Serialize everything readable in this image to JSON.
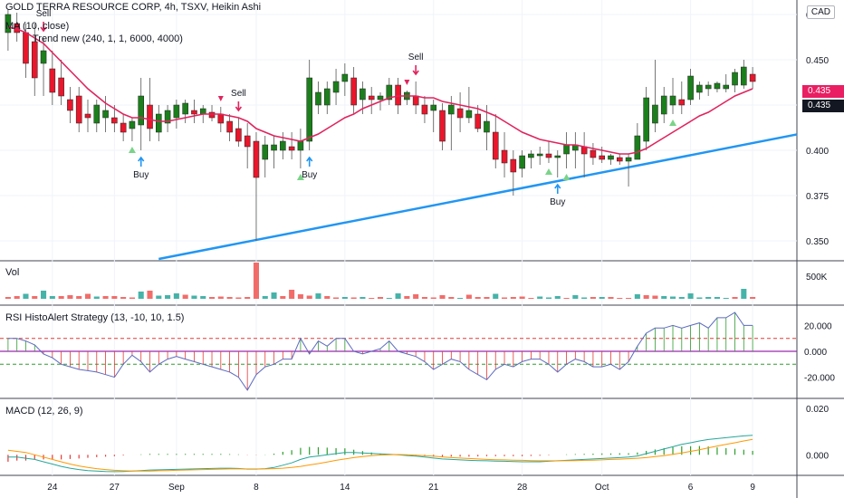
{
  "header": {
    "title": "GOLD TERRA RESOURCE CORP, 4h, TSXV, Heikin Ashi",
    "ma_label": "MA (10, close)",
    "trend_label": "Trend new (240, 1, 1, 6000, 4000)",
    "currency": "CAD"
  },
  "price_badges": {
    "last": "0.435",
    "ma": "0.435"
  },
  "panes": {
    "vol": "Vol",
    "rsi": "RSI HistoAlert Strategy (13, -10, 10, 1.5)",
    "macd": "MACD (12, 26, 9)"
  },
  "x_axis": [
    "24",
    "27",
    "Sep",
    "8",
    "14",
    "21",
    "28",
    "Oct",
    "6",
    "9"
  ],
  "colors": {
    "up": "#1b7f1b",
    "down": "#e8172c",
    "ma": "#e0245e",
    "trend": "#2196f3",
    "vol_up": "#26a69a",
    "vol_down": "#ef5350"
  },
  "chart_data": [
    {
      "type": "candlestick",
      "name": "price",
      "y_ticks": [
        "0.475",
        "0.450",
        "0.425",
        "0.400",
        "0.375",
        "0.350"
      ],
      "ylim": [
        0.339,
        0.483
      ],
      "candles": [
        {
          "o": 0.465,
          "h": 0.478,
          "l": 0.455,
          "c": 0.475
        },
        {
          "o": 0.47,
          "h": 0.476,
          "l": 0.46,
          "c": 0.465
        },
        {
          "o": 0.465,
          "h": 0.47,
          "l": 0.44,
          "c": 0.448
        },
        {
          "o": 0.46,
          "h": 0.47,
          "l": 0.43,
          "c": 0.44
        },
        {
          "o": 0.448,
          "h": 0.462,
          "l": 0.43,
          "c": 0.455
        },
        {
          "o": 0.445,
          "h": 0.455,
          "l": 0.425,
          "c": 0.432
        },
        {
          "o": 0.44,
          "h": 0.45,
          "l": 0.425,
          "c": 0.43
        },
        {
          "o": 0.428,
          "h": 0.435,
          "l": 0.415,
          "c": 0.422
        },
        {
          "o": 0.43,
          "h": 0.435,
          "l": 0.41,
          "c": 0.415
        },
        {
          "o": 0.42,
          "h": 0.428,
          "l": 0.41,
          "c": 0.418
        },
        {
          "o": 0.415,
          "h": 0.428,
          "l": 0.41,
          "c": 0.425
        },
        {
          "o": 0.418,
          "h": 0.43,
          "l": 0.41,
          "c": 0.422
        },
        {
          "o": 0.418,
          "h": 0.425,
          "l": 0.41,
          "c": 0.415
        },
        {
          "o": 0.415,
          "h": 0.42,
          "l": 0.405,
          "c": 0.41
        },
        {
          "o": 0.412,
          "h": 0.418,
          "l": 0.405,
          "c": 0.416
        },
        {
          "o": 0.414,
          "h": 0.44,
          "l": 0.4,
          "c": 0.43
        },
        {
          "o": 0.425,
          "h": 0.44,
          "l": 0.405,
          "c": 0.412
        },
        {
          "o": 0.41,
          "h": 0.425,
          "l": 0.405,
          "c": 0.42
        },
        {
          "o": 0.415,
          "h": 0.425,
          "l": 0.41,
          "c": 0.422
        },
        {
          "o": 0.418,
          "h": 0.428,
          "l": 0.412,
          "c": 0.425
        },
        {
          "o": 0.42,
          "h": 0.428,
          "l": 0.415,
          "c": 0.426
        },
        {
          "o": 0.422,
          "h": 0.428,
          "l": 0.415,
          "c": 0.42
        },
        {
          "o": 0.42,
          "h": 0.425,
          "l": 0.415,
          "c": 0.423
        },
        {
          "o": 0.421,
          "h": 0.425,
          "l": 0.416,
          "c": 0.418
        },
        {
          "o": 0.42,
          "h": 0.424,
          "l": 0.41,
          "c": 0.415
        },
        {
          "o": 0.416,
          "h": 0.42,
          "l": 0.405,
          "c": 0.41
        },
        {
          "o": 0.412,
          "h": 0.418,
          "l": 0.402,
          "c": 0.405
        },
        {
          "o": 0.408,
          "h": 0.415,
          "l": 0.39,
          "c": 0.402
        },
        {
          "o": 0.405,
          "h": 0.41,
          "l": 0.35,
          "c": 0.385
        },
        {
          "o": 0.395,
          "h": 0.408,
          "l": 0.385,
          "c": 0.403
        },
        {
          "o": 0.4,
          "h": 0.408,
          "l": 0.39,
          "c": 0.403
        },
        {
          "o": 0.4,
          "h": 0.41,
          "l": 0.395,
          "c": 0.405
        },
        {
          "o": 0.402,
          "h": 0.41,
          "l": 0.395,
          "c": 0.4
        },
        {
          "o": 0.4,
          "h": 0.412,
          "l": 0.39,
          "c": 0.405
        },
        {
          "o": 0.405,
          "h": 0.45,
          "l": 0.4,
          "c": 0.44
        },
        {
          "o": 0.425,
          "h": 0.438,
          "l": 0.42,
          "c": 0.432
        },
        {
          "o": 0.425,
          "h": 0.438,
          "l": 0.42,
          "c": 0.434
        },
        {
          "o": 0.432,
          "h": 0.445,
          "l": 0.425,
          "c": 0.438
        },
        {
          "o": 0.438,
          "h": 0.448,
          "l": 0.43,
          "c": 0.442
        },
        {
          "o": 0.44,
          "h": 0.446,
          "l": 0.42,
          "c": 0.425
        },
        {
          "o": 0.428,
          "h": 0.438,
          "l": 0.42,
          "c": 0.434
        },
        {
          "o": 0.43,
          "h": 0.435,
          "l": 0.42,
          "c": 0.428
        },
        {
          "o": 0.428,
          "h": 0.432,
          "l": 0.422,
          "c": 0.43
        },
        {
          "o": 0.428,
          "h": 0.44,
          "l": 0.425,
          "c": 0.436
        },
        {
          "o": 0.436,
          "h": 0.44,
          "l": 0.42,
          "c": 0.425
        },
        {
          "o": 0.428,
          "h": 0.433,
          "l": 0.425,
          "c": 0.432
        },
        {
          "o": 0.43,
          "h": 0.438,
          "l": 0.42,
          "c": 0.425
        },
        {
          "o": 0.425,
          "h": 0.43,
          "l": 0.415,
          "c": 0.42
        },
        {
          "o": 0.422,
          "h": 0.428,
          "l": 0.41,
          "c": 0.425
        },
        {
          "o": 0.422,
          "h": 0.426,
          "l": 0.4,
          "c": 0.405
        },
        {
          "o": 0.42,
          "h": 0.43,
          "l": 0.4,
          "c": 0.425
        },
        {
          "o": 0.423,
          "h": 0.432,
          "l": 0.41,
          "c": 0.418
        },
        {
          "o": 0.418,
          "h": 0.435,
          "l": 0.415,
          "c": 0.422
        },
        {
          "o": 0.42,
          "h": 0.425,
          "l": 0.41,
          "c": 0.412
        },
        {
          "o": 0.41,
          "h": 0.425,
          "l": 0.4,
          "c": 0.416
        },
        {
          "o": 0.41,
          "h": 0.42,
          "l": 0.39,
          "c": 0.395
        },
        {
          "o": 0.4,
          "h": 0.41,
          "l": 0.385,
          "c": 0.393
        },
        {
          "o": 0.395,
          "h": 0.4,
          "l": 0.375,
          "c": 0.388
        },
        {
          "o": 0.39,
          "h": 0.4,
          "l": 0.385,
          "c": 0.397
        },
        {
          "o": 0.396,
          "h": 0.4,
          "l": 0.39,
          "c": 0.398
        },
        {
          "o": 0.397,
          "h": 0.402,
          "l": 0.392,
          "c": 0.398
        },
        {
          "o": 0.398,
          "h": 0.405,
          "l": 0.393,
          "c": 0.396
        },
        {
          "o": 0.396,
          "h": 0.4,
          "l": 0.385,
          "c": 0.397
        },
        {
          "o": 0.398,
          "h": 0.41,
          "l": 0.39,
          "c": 0.403
        },
        {
          "o": 0.4,
          "h": 0.41,
          "l": 0.39,
          "c": 0.403
        },
        {
          "o": 0.402,
          "h": 0.41,
          "l": 0.385,
          "c": 0.398
        },
        {
          "o": 0.4,
          "h": 0.404,
          "l": 0.392,
          "c": 0.396
        },
        {
          "o": 0.397,
          "h": 0.402,
          "l": 0.393,
          "c": 0.395
        },
        {
          "o": 0.395,
          "h": 0.398,
          "l": 0.392,
          "c": 0.397
        },
        {
          "o": 0.396,
          "h": 0.398,
          "l": 0.392,
          "c": 0.394
        },
        {
          "o": 0.394,
          "h": 0.398,
          "l": 0.38,
          "c": 0.396
        },
        {
          "o": 0.395,
          "h": 0.415,
          "l": 0.395,
          "c": 0.408
        },
        {
          "o": 0.405,
          "h": 0.435,
          "l": 0.4,
          "c": 0.429
        },
        {
          "o": 0.415,
          "h": 0.45,
          "l": 0.41,
          "c": 0.425
        },
        {
          "o": 0.42,
          "h": 0.435,
          "l": 0.415,
          "c": 0.43
        },
        {
          "o": 0.425,
          "h": 0.44,
          "l": 0.42,
          "c": 0.43
        },
        {
          "o": 0.428,
          "h": 0.438,
          "l": 0.42,
          "c": 0.425
        },
        {
          "o": 0.428,
          "h": 0.445,
          "l": 0.425,
          "c": 0.441
        },
        {
          "o": 0.432,
          "h": 0.438,
          "l": 0.428,
          "c": 0.436
        },
        {
          "o": 0.434,
          "h": 0.438,
          "l": 0.43,
          "c": 0.436
        },
        {
          "o": 0.434,
          "h": 0.438,
          "l": 0.432,
          "c": 0.437
        },
        {
          "o": 0.434,
          "h": 0.442,
          "l": 0.432,
          "c": 0.436
        },
        {
          "o": 0.436,
          "h": 0.445,
          "l": 0.432,
          "c": 0.443
        },
        {
          "o": 0.436,
          "h": 0.45,
          "l": 0.434,
          "c": 0.446
        },
        {
          "o": 0.442,
          "h": 0.446,
          "l": 0.434,
          "c": 0.438
        }
      ],
      "ma": [
        0.468,
        0.467,
        0.465,
        0.462,
        0.459,
        0.454,
        0.449,
        0.444,
        0.439,
        0.434,
        0.43,
        0.426,
        0.423,
        0.42,
        0.418,
        0.418,
        0.417,
        0.416,
        0.416,
        0.417,
        0.418,
        0.419,
        0.42,
        0.42,
        0.42,
        0.419,
        0.418,
        0.416,
        0.412,
        0.41,
        0.408,
        0.407,
        0.406,
        0.405,
        0.407,
        0.409,
        0.412,
        0.415,
        0.418,
        0.42,
        0.423,
        0.425,
        0.427,
        0.429,
        0.43,
        0.43,
        0.43,
        0.429,
        0.429,
        0.427,
        0.426,
        0.425,
        0.424,
        0.423,
        0.421,
        0.419,
        0.416,
        0.413,
        0.41,
        0.408,
        0.406,
        0.405,
        0.404,
        0.403,
        0.403,
        0.402,
        0.401,
        0.4,
        0.399,
        0.398,
        0.398,
        0.399,
        0.401,
        0.404,
        0.407,
        0.41,
        0.413,
        0.416,
        0.419,
        0.421,
        0.424,
        0.427,
        0.43,
        0.432,
        0.434
      ],
      "trendline": [
        {
          "i": 17,
          "v": 0.34
        },
        {
          "i": 84,
          "v": 0.404
        }
      ],
      "signals": [
        {
          "i": 4,
          "type": "sell",
          "label": "Sell"
        },
        {
          "i": 15,
          "type": "buy",
          "label": "Buy"
        },
        {
          "i": 26,
          "type": "sell",
          "label": "Sell"
        },
        {
          "i": 34,
          "type": "buy",
          "label": "Buy"
        },
        {
          "i": 46,
          "type": "sell",
          "label": "Sell"
        },
        {
          "i": 62,
          "type": "buy",
          "label": "Buy"
        }
      ],
      "up_markers": [
        14,
        33,
        61,
        63,
        75
      ],
      "down_markers": [
        24,
        45
      ]
    },
    {
      "type": "bar",
      "name": "volume",
      "y_ticks": [
        "500K"
      ],
      "ylim": [
        0,
        800000
      ],
      "values": [
        40000,
        60000,
        110000,
        60000,
        180000,
        60000,
        60000,
        80000,
        60000,
        110000,
        50000,
        60000,
        60000,
        40000,
        30000,
        160000,
        180000,
        70000,
        80000,
        120000,
        90000,
        70000,
        60000,
        40000,
        50000,
        40000,
        30000,
        40000,
        800000,
        60000,
        140000,
        60000,
        200000,
        100000,
        70000,
        120000,
        60000,
        30000,
        40000,
        30000,
        40000,
        20000,
        40000,
        20000,
        120000,
        60000,
        100000,
        40000,
        30000,
        80000,
        40000,
        20000,
        90000,
        40000,
        40000,
        110000,
        30000,
        40000,
        50000,
        20000,
        50000,
        30000,
        60000,
        20000,
        80000,
        30000,
        40000,
        40000,
        40000,
        20000,
        20000,
        100000,
        80000,
        70000,
        60000,
        50000,
        40000,
        120000,
        30000,
        40000,
        40000,
        20000,
        40000,
        220000,
        40000
      ],
      "directions": "dduduuddddudddduduuuduudddddduudddduddududduuddddddudddudddduuuduududddudduuuuuuuudu"
    },
    {
      "type": "bar",
      "name": "rsi_histo",
      "y_ticks": [
        "20.000",
        "0.000",
        "-20.000"
      ],
      "ylim": [
        -35,
        35
      ],
      "levels": [
        10,
        -10
      ],
      "values": [
        10,
        10,
        8,
        5,
        -2,
        -5,
        -10,
        -12,
        -14,
        -15,
        -16,
        -18,
        -20,
        -10,
        -3,
        -8,
        -16,
        -10,
        -6,
        -4,
        -6,
        -8,
        -10,
        -12,
        -14,
        -16,
        -20,
        -30,
        -18,
        -12,
        -10,
        -6,
        -6,
        10,
        -2,
        8,
        4,
        10,
        10,
        0,
        -2,
        0,
        2,
        8,
        0,
        -2,
        -4,
        -8,
        -14,
        -10,
        -6,
        -8,
        -14,
        -18,
        -22,
        -14,
        -10,
        -12,
        -8,
        -6,
        -6,
        -10,
        -16,
        -10,
        -6,
        -8,
        -12,
        -12,
        -10,
        -14,
        -8,
        4,
        14,
        18,
        18,
        20,
        18,
        20,
        22,
        18,
        26,
        26,
        30,
        20,
        20
      ],
      "values_note_removed": false
    },
    {
      "type": "line+bar",
      "name": "macd",
      "y_ticks": [
        "0.020",
        "0.000"
      ],
      "ylim": [
        -0.0085,
        0.024
      ],
      "macd": [
        -0.001,
        -0.001,
        -0.0015,
        -0.002,
        -0.003,
        -0.004,
        -0.005,
        -0.0058,
        -0.0064,
        -0.0068,
        -0.007,
        -0.0072,
        -0.0073,
        -0.0072,
        -0.007,
        -0.0068,
        -0.0066,
        -0.0065,
        -0.0064,
        -0.0063,
        -0.0062,
        -0.0061,
        -0.006,
        -0.0059,
        -0.0058,
        -0.0058,
        -0.0059,
        -0.0062,
        -0.0062,
        -0.006,
        -0.0055,
        -0.0045,
        -0.0035,
        -0.002,
        -0.001,
        -0.0005,
        0.0,
        0.0005,
        0.001,
        0.001,
        0.0008,
        0.0006,
        0.0004,
        0.0002,
        0.0,
        -0.0003,
        -0.0006,
        -0.001,
        -0.0014,
        -0.0018,
        -0.002,
        -0.0022,
        -0.0024,
        -0.0025,
        -0.0026,
        -0.0027,
        -0.0028,
        -0.0029,
        -0.003,
        -0.003,
        -0.003,
        -0.0028,
        -0.0026,
        -0.0024,
        -0.0022,
        -0.002,
        -0.0018,
        -0.0016,
        -0.0014,
        -0.0012,
        -0.001,
        -0.0005,
        0.0005,
        0.0015,
        0.0025,
        0.0035,
        0.0045,
        0.0052,
        0.006,
        0.0066,
        0.007,
        0.0074,
        0.0078,
        0.0082,
        0.0084
      ],
      "signal": [
        0.002,
        0.0015,
        0.001,
        0.0,
        -0.001,
        -0.002,
        -0.003,
        -0.004,
        -0.0048,
        -0.0055,
        -0.006,
        -0.0064,
        -0.0067,
        -0.0069,
        -0.007,
        -0.007,
        -0.007,
        -0.0069,
        -0.0068,
        -0.0067,
        -0.0066,
        -0.0065,
        -0.0064,
        -0.0063,
        -0.0062,
        -0.0061,
        -0.0061,
        -0.0061,
        -0.0061,
        -0.0061,
        -0.006,
        -0.0058,
        -0.0055,
        -0.005,
        -0.0044,
        -0.0038,
        -0.0031,
        -0.0024,
        -0.0018,
        -0.0012,
        -0.0008,
        -0.0004,
        -0.0001,
        0.0,
        0.0001,
        0.0,
        -0.0002,
        -0.0004,
        -0.0006,
        -0.0009,
        -0.0012,
        -0.0014,
        -0.0016,
        -0.0018,
        -0.002,
        -0.0021,
        -0.0022,
        -0.0023,
        -0.0024,
        -0.0025,
        -0.0026,
        -0.0026,
        -0.0026,
        -0.0026,
        -0.0025,
        -0.0024,
        -0.0023,
        -0.0022,
        -0.002,
        -0.0019,
        -0.0017,
        -0.0015,
        -0.0012,
        -0.0008,
        -0.0004,
        0.0002,
        0.0008,
        0.0015,
        0.0022,
        0.003,
        0.0038,
        0.0045,
        0.0052,
        0.006,
        0.0067
      ],
      "histogram": [
        -0.003,
        -0.0025,
        -0.0025,
        -0.002,
        -0.002,
        -0.002,
        -0.002,
        -0.0018,
        -0.0016,
        -0.0013,
        -0.001,
        -0.0008,
        -0.0006,
        -0.0003,
        0.0,
        0.0002,
        0.0004,
        0.0004,
        0.0004,
        0.0004,
        0.0004,
        0.0004,
        0.0004,
        0.0004,
        0.0004,
        0.0003,
        0.0002,
        -0.0001,
        -0.0001,
        0.0001,
        0.0005,
        0.0013,
        0.002,
        0.003,
        0.0034,
        0.0033,
        0.0031,
        0.0029,
        0.0028,
        0.0022,
        0.0016,
        0.001,
        0.0005,
        0.0002,
        -0.0001,
        -0.0003,
        -0.0004,
        -0.0006,
        -0.0008,
        -0.0009,
        -0.0008,
        -0.0008,
        -0.0008,
        -0.0007,
        -0.0006,
        -0.0006,
        -0.0006,
        -0.0006,
        -0.0006,
        -0.0005,
        -0.0004,
        -0.0002,
        0.0,
        0.0002,
        0.0003,
        0.0004,
        0.0005,
        0.0006,
        0.0006,
        0.0007,
        0.0007,
        0.001,
        0.0017,
        0.0023,
        0.0029,
        0.0033,
        0.0037,
        0.0037,
        0.0038,
        0.0036,
        0.0032,
        0.0029,
        0.0026,
        0.0022,
        0.0017
      ]
    }
  ]
}
